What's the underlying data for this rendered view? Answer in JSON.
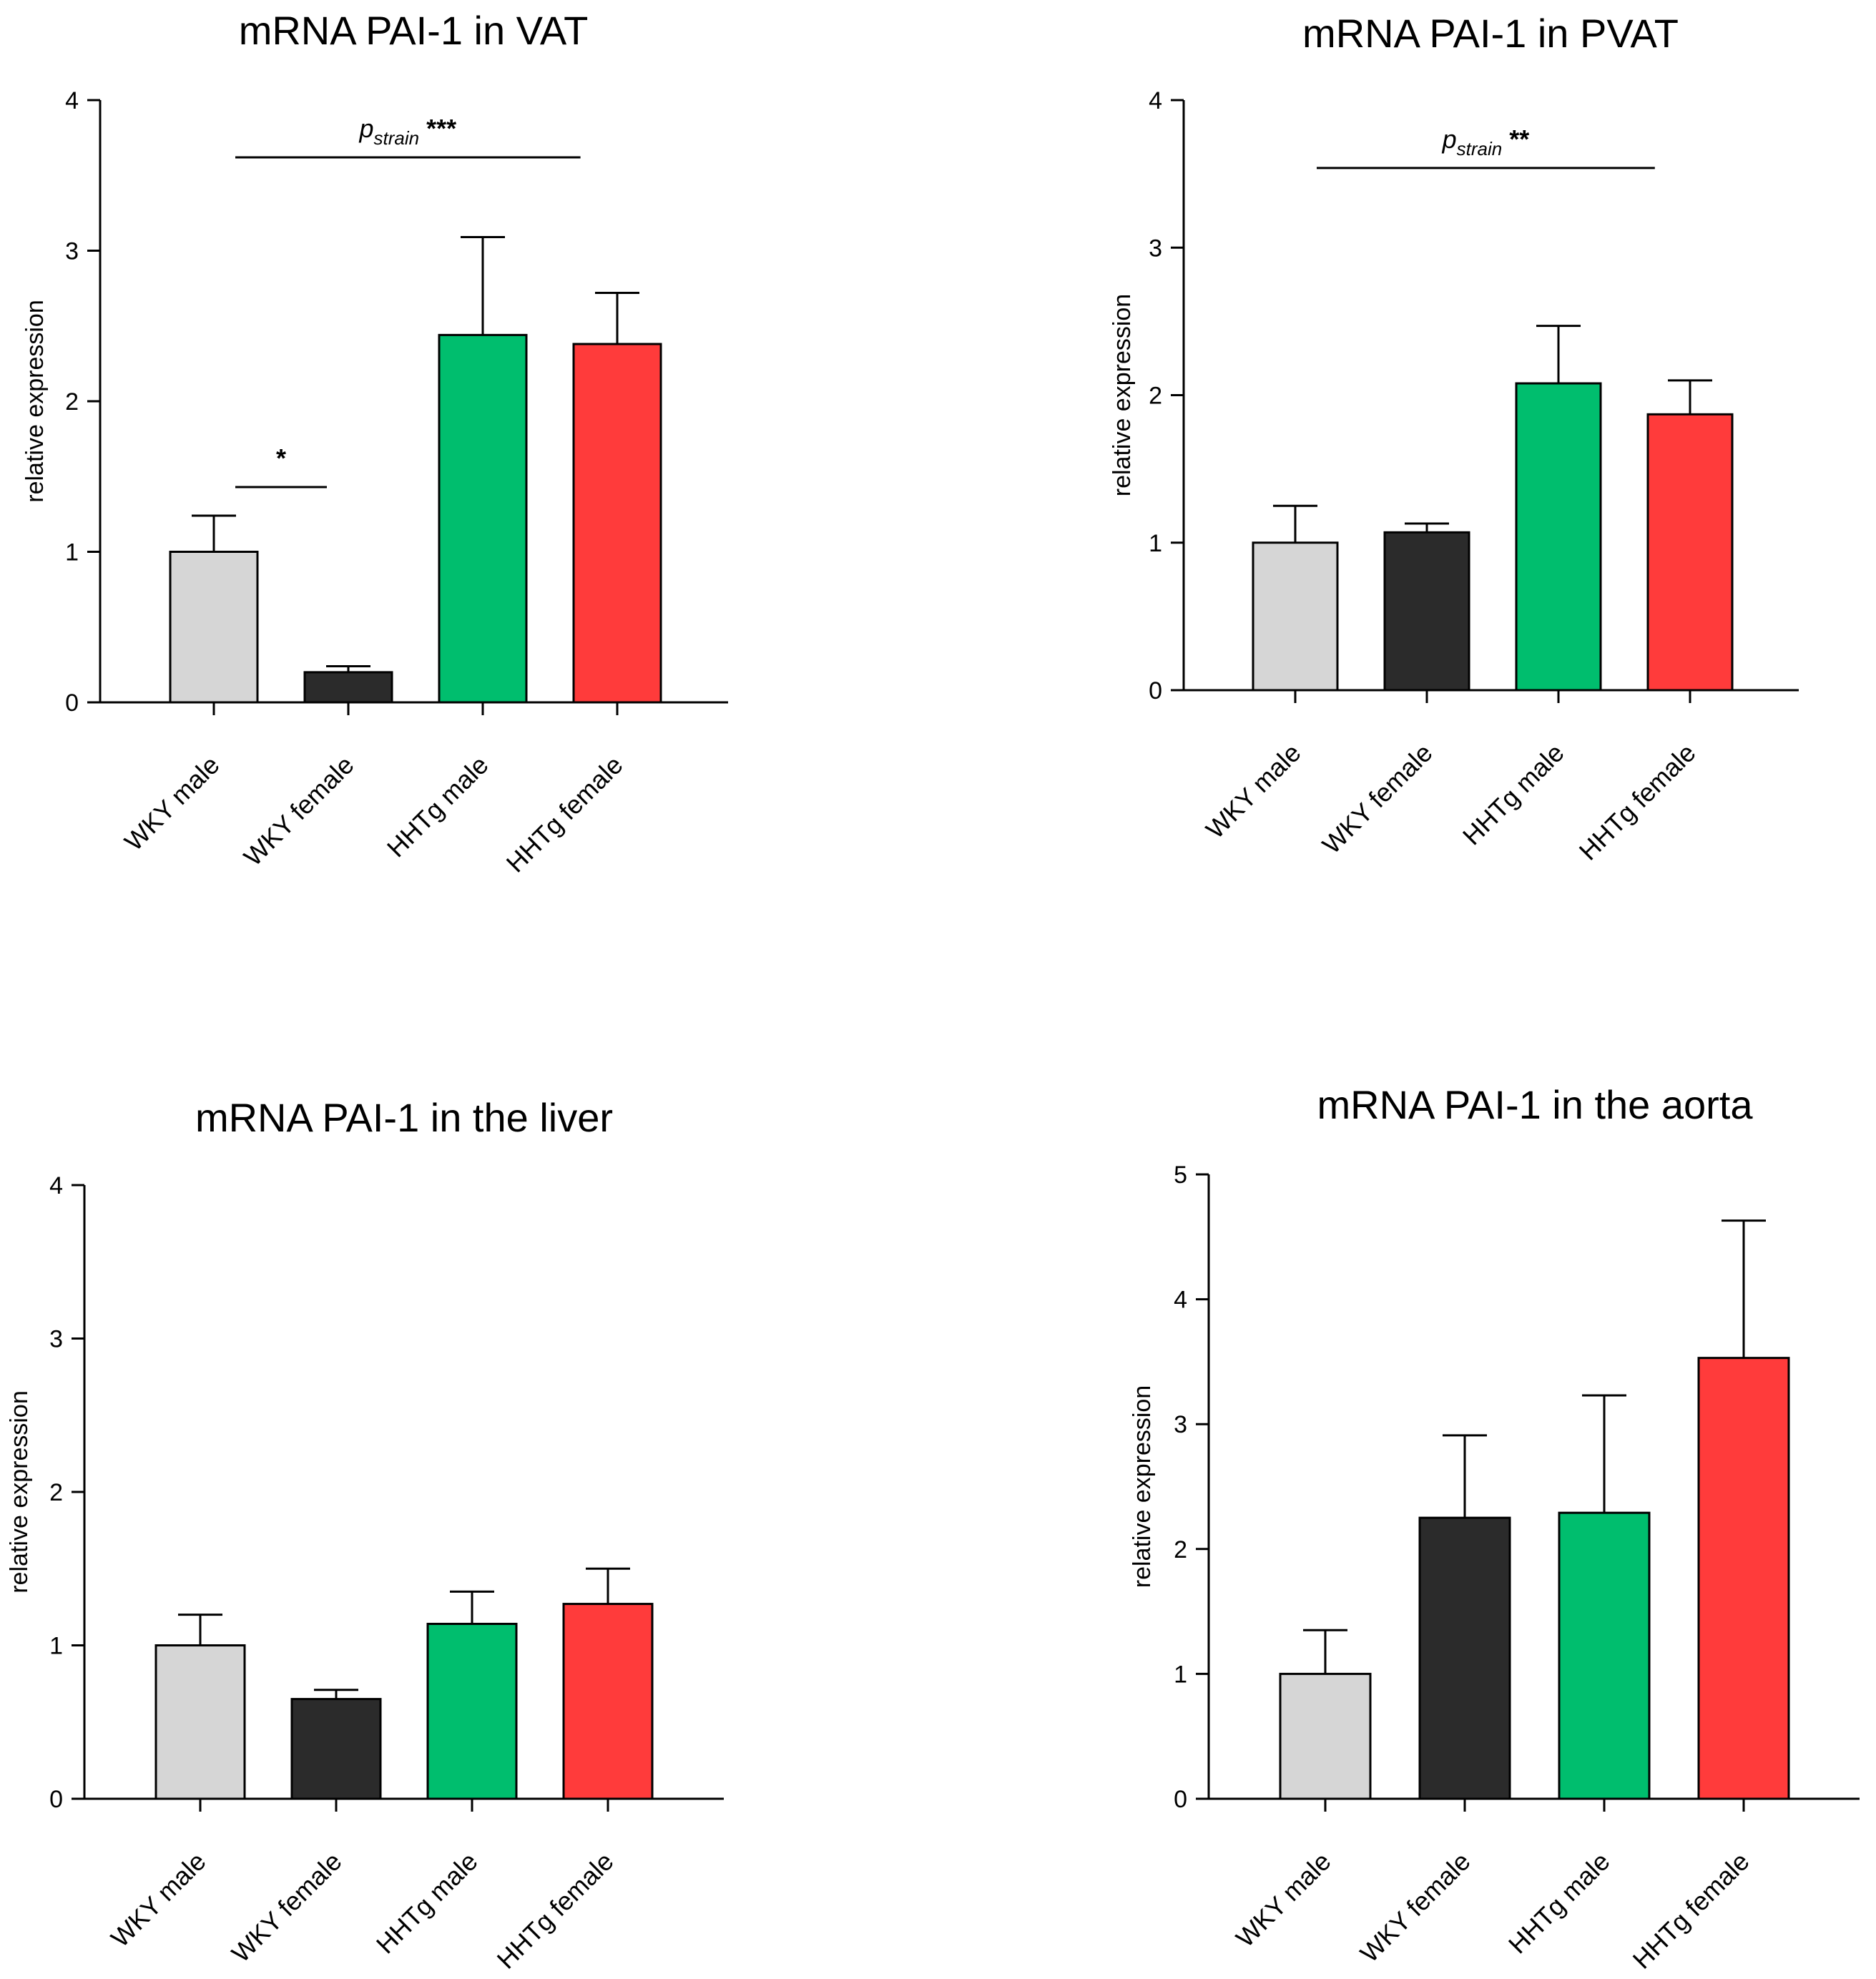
{
  "figure": {
    "panel_count": 4
  },
  "chart_data": [
    {
      "type": "bar",
      "title": "mRNA PAI-1 in VAT",
      "xlabel": "",
      "ylabel": "relative expression",
      "ylim": [
        0,
        4
      ],
      "yticks": [
        "0",
        "1",
        "2",
        "3",
        "4"
      ],
      "categories": [
        "WKY male",
        "WKY female",
        "HHTg male",
        "HHTg female"
      ],
      "values": [
        1.0,
        0.2,
        2.44,
        2.38
      ],
      "errors": [
        0.24,
        0.04,
        0.65,
        0.34
      ],
      "colors": [
        "#d6d6d6",
        "#2b2b2b",
        "#00be6e",
        "#ff3b3b"
      ],
      "annotations": [
        {
          "from": 0,
          "to": 3,
          "level": 3.62,
          "p": "p",
          "sub": "strain",
          "stars": " ***"
        },
        {
          "from": 0,
          "to": 1,
          "level": 1.43,
          "p": "",
          "sub": "",
          "stars": "*"
        }
      ]
    },
    {
      "type": "bar",
      "title": "mRNA PAI-1 in PVAT",
      "xlabel": "",
      "ylabel": "relative expression",
      "ylim": [
        0,
        4
      ],
      "yticks": [
        "0",
        "1",
        "2",
        "3",
        "4"
      ],
      "categories": [
        "WKY male",
        "WKY female",
        "HHTg male",
        "HHTg female"
      ],
      "values": [
        1.0,
        1.07,
        2.08,
        1.87
      ],
      "errors": [
        0.25,
        0.06,
        0.39,
        0.23
      ],
      "colors": [
        "#d6d6d6",
        "#2b2b2b",
        "#00be6e",
        "#ff3b3b"
      ],
      "annotations": [
        {
          "from": 0,
          "to": 3,
          "level": 3.54,
          "p": "p",
          "sub": "strain",
          "stars": " **"
        }
      ]
    },
    {
      "type": "bar",
      "title": "mRNA PAI-1 in the liver",
      "xlabel": "",
      "ylabel": "relative expression",
      "ylim": [
        0,
        4
      ],
      "yticks": [
        "0",
        "1",
        "2",
        "3",
        "4"
      ],
      "categories": [
        "WKY male",
        "WKY female",
        "HHTg male",
        "HHTg female"
      ],
      "values": [
        1.0,
        0.65,
        1.14,
        1.27
      ],
      "errors": [
        0.2,
        0.06,
        0.21,
        0.23
      ],
      "colors": [
        "#d6d6d6",
        "#2b2b2b",
        "#00be6e",
        "#ff3b3b"
      ],
      "annotations": []
    },
    {
      "type": "bar",
      "title": "mRNA PAI-1 in the aorta",
      "xlabel": "",
      "ylabel": "relative expression",
      "ylim": [
        0,
        5
      ],
      "yticks": [
        "0",
        "1",
        "2",
        "3",
        "4",
        "5"
      ],
      "categories": [
        "WKY male",
        "WKY female",
        "HHTg male",
        "HHTg female"
      ],
      "values": [
        1.0,
        2.25,
        2.29,
        3.53
      ],
      "errors": [
        0.35,
        0.66,
        0.94,
        1.1
      ],
      "colors": [
        "#d6d6d6",
        "#2b2b2b",
        "#00be6e",
        "#ff3b3b"
      ],
      "annotations": []
    }
  ]
}
